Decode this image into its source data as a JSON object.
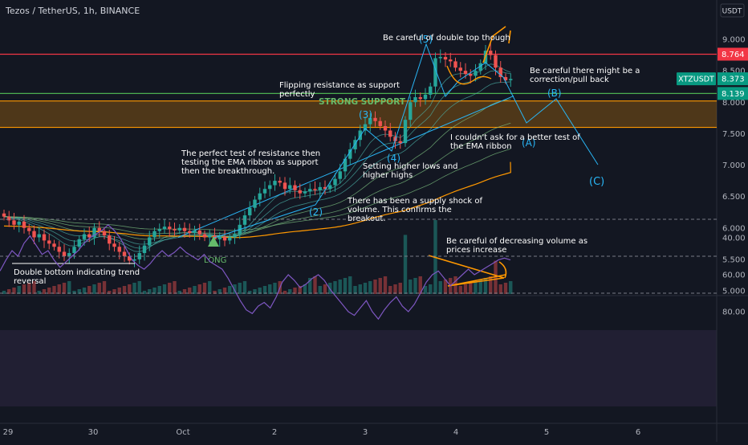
{
  "header": {
    "symbol_title": "Tezos / TetherUS, 1h, BINANCE",
    "currency_badge": "USDT"
  },
  "chart_data": {
    "type": "candlestick",
    "symbol": "Tezos / TetherUS",
    "interval": "1h",
    "exchange": "BINANCE",
    "price_axis": {
      "range": [
        4.95,
        9.35
      ],
      "ticks": [
        "9.000",
        "8.500",
        "8.000",
        "7.500",
        "7.000",
        "6.500",
        "6.000",
        "5.500",
        "5.000"
      ]
    },
    "price_badges": [
      {
        "name": "",
        "value": "8.764",
        "color": "#f23645"
      },
      {
        "name": "XTZUSDT",
        "value": "8.373",
        "color": "#089981"
      },
      {
        "name": "",
        "value": "8.139",
        "color": "#089981"
      }
    ],
    "horizontal_levels": [
      {
        "price": 8.764,
        "color": "#f23645"
      },
      {
        "price": 8.139,
        "color": "#4caf50"
      },
      {
        "price": 8.02,
        "color": "#ff9800"
      },
      {
        "price": 7.6,
        "color": "#ff9800"
      }
    ],
    "support_zone": {
      "from": 7.6,
      "to": 8.02,
      "color": "#ff9800"
    },
    "time_axis": {
      "ticks": [
        "29",
        "30",
        "Oct",
        "2",
        "3",
        "4",
        "5",
        "6"
      ]
    },
    "candle_closes": [
      6.18,
      6.12,
      6.05,
      6.1,
      6.0,
      5.95,
      5.85,
      5.9,
      5.8,
      5.75,
      5.7,
      5.62,
      5.55,
      5.6,
      5.7,
      5.82,
      5.9,
      5.85,
      6.0,
      5.95,
      5.88,
      5.75,
      5.7,
      5.62,
      5.55,
      5.48,
      5.5,
      5.6,
      5.72,
      5.85,
      5.95,
      5.98,
      6.02,
      5.98,
      5.96,
      6.0,
      5.95,
      5.92,
      5.96,
      5.9,
      5.85,
      5.88,
      5.82,
      5.86,
      5.8,
      5.85,
      5.9,
      6.05,
      6.2,
      6.32,
      6.45,
      6.55,
      6.62,
      6.68,
      6.75,
      6.72,
      6.62,
      6.68,
      6.6,
      6.55,
      6.58,
      6.62,
      6.6,
      6.65,
      6.62,
      6.68,
      6.78,
      6.9,
      7.1,
      7.25,
      7.4,
      7.55,
      7.65,
      7.75,
      7.7,
      7.62,
      7.55,
      7.45,
      7.38,
      7.35,
      7.72,
      8.0,
      8.08,
      8.05,
      8.12,
      8.25,
      8.7,
      8.72,
      8.68,
      8.65,
      8.55,
      8.5,
      8.45,
      8.42,
      8.5,
      8.62,
      8.82,
      8.75,
      8.55,
      8.4,
      8.35,
      8.37
    ],
    "volume_spikes": [
      {
        "bar": 80,
        "relative": 0.8
      },
      {
        "bar": 86,
        "relative": 1.0
      },
      {
        "bar": 98,
        "relative": 0.45
      }
    ],
    "rsi": {
      "axis_ticks": [
        "80.00",
        "60.00",
        "40.00"
      ],
      "range": [
        25,
        88
      ],
      "bands": [
        70,
        50,
        30
      ],
      "values": [
        58,
        52,
        47,
        50,
        43,
        39,
        44,
        49,
        47,
        52,
        56,
        53,
        50,
        47,
        43,
        40,
        38,
        36,
        33,
        36,
        40,
        46,
        52,
        55,
        57,
        54,
        50,
        47,
        50,
        48,
        45,
        48,
        50,
        52,
        49,
        53,
        55,
        57,
        62,
        68,
        74,
        79,
        81,
        77,
        75,
        78,
        72,
        64,
        60,
        63,
        67,
        65,
        62,
        60,
        63,
        68,
        72,
        76,
        80,
        82,
        78,
        74,
        80,
        84,
        79,
        75,
        72,
        77,
        80,
        76,
        70,
        64,
        60,
        58,
        62,
        66,
        63,
        60,
        57,
        60,
        58,
        56,
        54,
        52,
        51,
        52
      ]
    },
    "annotations": [
      {
        "id": "double-top",
        "text": [
          "Be careful of double top though"
        ]
      },
      {
        "id": "correction",
        "text": [
          "Be careful there might be a",
          "correction/pull back"
        ]
      },
      {
        "id": "flipping",
        "text": [
          "Flipping resistance as support",
          "perfectly"
        ]
      },
      {
        "id": "strong-support",
        "text": [
          "STRONG SUPPORT"
        ]
      },
      {
        "id": "ema-test",
        "text": [
          "I couldn't ask for a better test of",
          "the EMA ribbon"
        ]
      },
      {
        "id": "resistance-test",
        "text": [
          "The perfect test of resistance then",
          "testing the EMA ribbon as support",
          "then the breakthrough."
        ]
      },
      {
        "id": "higher-lows",
        "text": [
          "Setting higher lows and",
          "higher highs"
        ]
      },
      {
        "id": "supply-shock",
        "text": [
          "There has been a supply shock of",
          "volume. This confirms the",
          "breakout."
        ]
      },
      {
        "id": "decreasing-volume",
        "text": [
          "Be careful of decreasing volume as",
          "prices increase"
        ]
      },
      {
        "id": "double-bottom",
        "text": [
          "Double bottom indicating trend",
          "reversal"
        ]
      },
      {
        "id": "long",
        "text": [
          "LONG"
        ]
      }
    ],
    "wave_labels": [
      {
        "label": "(2)"
      },
      {
        "label": "(3)"
      },
      {
        "label": "(4)"
      },
      {
        "label": "(5)"
      },
      {
        "label": "(A)"
      },
      {
        "label": "(B)"
      },
      {
        "label": "(C)"
      }
    ]
  }
}
